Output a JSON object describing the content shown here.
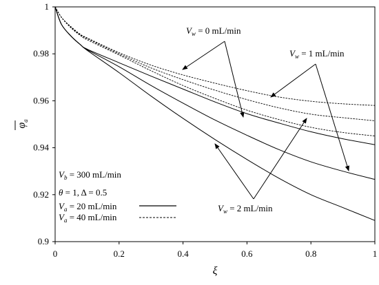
{
  "chart_data": {
    "type": "line",
    "xlabel": "ξ",
    "ylabel": "φa",
    "xlim": [
      0,
      1
    ],
    "ylim": [
      0.9,
      1
    ],
    "x_ticks": [
      "0",
      "0.2",
      "0.4",
      "0.6",
      "0.8",
      "1"
    ],
    "y_ticks": [
      "0.9",
      "0.92",
      "0.94",
      "0.96",
      "0.98",
      "1"
    ],
    "grid": false,
    "x": [
      0,
      0.02,
      0.05,
      0.08,
      0.1,
      0.2,
      0.3,
      0.4,
      0.5,
      0.6,
      0.7,
      0.8,
      0.9,
      1.0
    ],
    "series": [
      {
        "vw": "0",
        "va": "20",
        "values": [
          1,
          0.9925,
          0.9875,
          0.9838,
          0.982,
          0.9762,
          0.9705,
          0.965,
          0.9595,
          0.9545,
          0.9505,
          0.9468,
          0.9438,
          0.9413
        ]
      },
      {
        "vw": "1",
        "va": "20",
        "values": [
          1,
          0.9925,
          0.9875,
          0.9838,
          0.9818,
          0.9745,
          0.9665,
          0.959,
          0.9518,
          0.9453,
          0.9392,
          0.934,
          0.93,
          0.9265
        ]
      },
      {
        "vw": "2",
        "va": "20",
        "values": [
          1,
          0.9925,
          0.9875,
          0.9838,
          0.9815,
          0.972,
          0.962,
          0.9525,
          0.9435,
          0.935,
          0.927,
          0.92,
          0.9145,
          0.909
        ]
      },
      {
        "vw": "0",
        "va": "40",
        "values": [
          1,
          0.9955,
          0.9915,
          0.9882,
          0.9868,
          0.9805,
          0.9752,
          0.971,
          0.9675,
          0.9643,
          0.9616,
          0.9598,
          0.9587,
          0.958
        ]
      },
      {
        "vw": "1",
        "va": "40",
        "values": [
          1,
          0.9955,
          0.9913,
          0.988,
          0.9865,
          0.98,
          0.974,
          0.969,
          0.9645,
          0.9605,
          0.957,
          0.9543,
          0.9528,
          0.9515
        ]
      },
      {
        "vw": "2",
        "va": "40",
        "values": [
          1,
          0.9955,
          0.991,
          0.9877,
          0.986,
          0.9795,
          0.9728,
          0.9665,
          0.961,
          0.956,
          0.952,
          0.9487,
          0.9465,
          0.945
        ]
      }
    ],
    "annotations": {
      "vw0": {
        "var": "V",
        "sub": "w",
        "text": " = 0 mL/min"
      },
      "vw1": {
        "var": "V",
        "sub": "w",
        "text": " = 1 mL/min"
      },
      "vw2": {
        "var": "V",
        "sub": "w",
        "text": " = 2 mL/min"
      },
      "vb": {
        "var": "V",
        "sub": "b",
        "text": " = 300 mL/min"
      },
      "theta": {
        "var": "θ",
        "text": " = 1, Δ = 0.5"
      }
    },
    "legend": {
      "placement": "bottom-left",
      "entries": [
        {
          "var": "V",
          "sub": "a",
          "text": " = 20 mL/min",
          "style": "solid"
        },
        {
          "var": "V",
          "sub": "a",
          "text": " = 40 mL/min",
          "style": "dashed"
        }
      ]
    }
  }
}
